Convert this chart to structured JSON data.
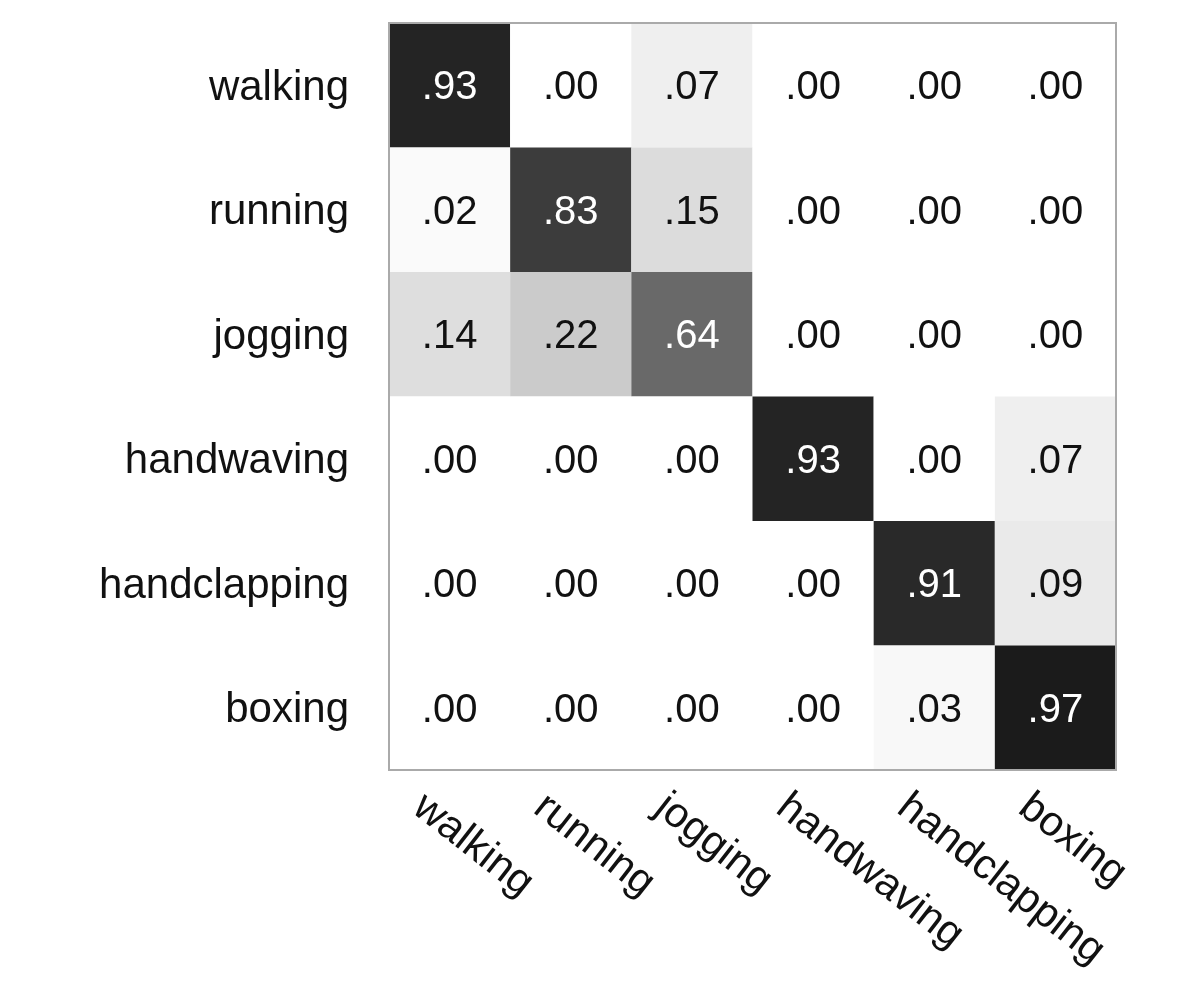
{
  "chart_data": {
    "type": "heatmap",
    "categories": [
      "walking",
      "running",
      "jogging",
      "handwaving",
      "handclapping",
      "boxing"
    ],
    "y_categories": [
      "walking",
      "running",
      "jogging",
      "handwaving",
      "handclapping",
      "boxing"
    ],
    "cells": [
      [
        0.93,
        0.0,
        0.07,
        0.0,
        0.0,
        0.0
      ],
      [
        0.02,
        0.83,
        0.15,
        0.0,
        0.0,
        0.0
      ],
      [
        0.14,
        0.22,
        0.64,
        0.0,
        0.0,
        0.0
      ],
      [
        0.0,
        0.0,
        0.0,
        0.93,
        0.0,
        0.07
      ],
      [
        0.0,
        0.0,
        0.0,
        0.0,
        0.91,
        0.09
      ],
      [
        0.0,
        0.0,
        0.0,
        0.0,
        0.03,
        0.97
      ]
    ],
    "cell_labels": [
      [
        ".93",
        ".00",
        ".07",
        ".00",
        ".00",
        ".00"
      ],
      [
        ".02",
        ".83",
        ".15",
        ".00",
        ".00",
        ".00"
      ],
      [
        ".14",
        ".22",
        ".64",
        ".00",
        ".00",
        ".00"
      ],
      [
        ".00",
        ".00",
        ".00",
        ".93",
        ".00",
        ".07"
      ],
      [
        ".00",
        ".00",
        ".00",
        ".00",
        ".91",
        ".09"
      ],
      [
        ".00",
        ".00",
        ".00",
        ".00",
        ".03",
        ".97"
      ]
    ]
  }
}
